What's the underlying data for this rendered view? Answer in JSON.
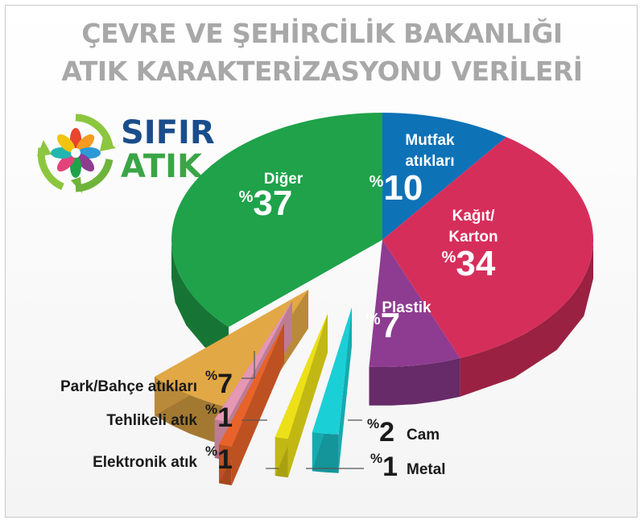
{
  "title": {
    "line1": "ÇEVRE VE ŞEHİRCİLİK BAKANLIĞI",
    "line2": "ATIK KARAKTERİZASYONU VERİLERİ"
  },
  "logo": {
    "line1": "SIFIR",
    "line2": "ATIK",
    "colors": {
      "line1": "#1a4d8c",
      "line2": "#3aa546",
      "arrows": "#8cc63f"
    }
  },
  "chart_data": {
    "type": "pie",
    "title": "ATIK KARAKTERİZASYONU VERİLERİ",
    "unit": "%",
    "slices": [
      {
        "label": "Mutfak atıkları",
        "value": 10,
        "color": "#0e72b7"
      },
      {
        "label": "Kağıt/ Karton",
        "value": 34,
        "color": "#d62e5b"
      },
      {
        "label": "Plastik",
        "value": 7,
        "color": "#8e3c91"
      },
      {
        "label": "Cam",
        "value": 2,
        "color": "#1bcfd6"
      },
      {
        "label": "Metal",
        "value": 1,
        "color": "#ece018"
      },
      {
        "label": "Elektronik atık",
        "value": 1,
        "color": "#e8632a"
      },
      {
        "label": "Tehlikeli atık",
        "value": 1,
        "color": "#e597b4"
      },
      {
        "label": "Park/Bahçe atıkları",
        "value": 7,
        "color": "#e2a845"
      },
      {
        "label": "Diğer",
        "value": 37,
        "color": "#1fa24a"
      }
    ]
  }
}
